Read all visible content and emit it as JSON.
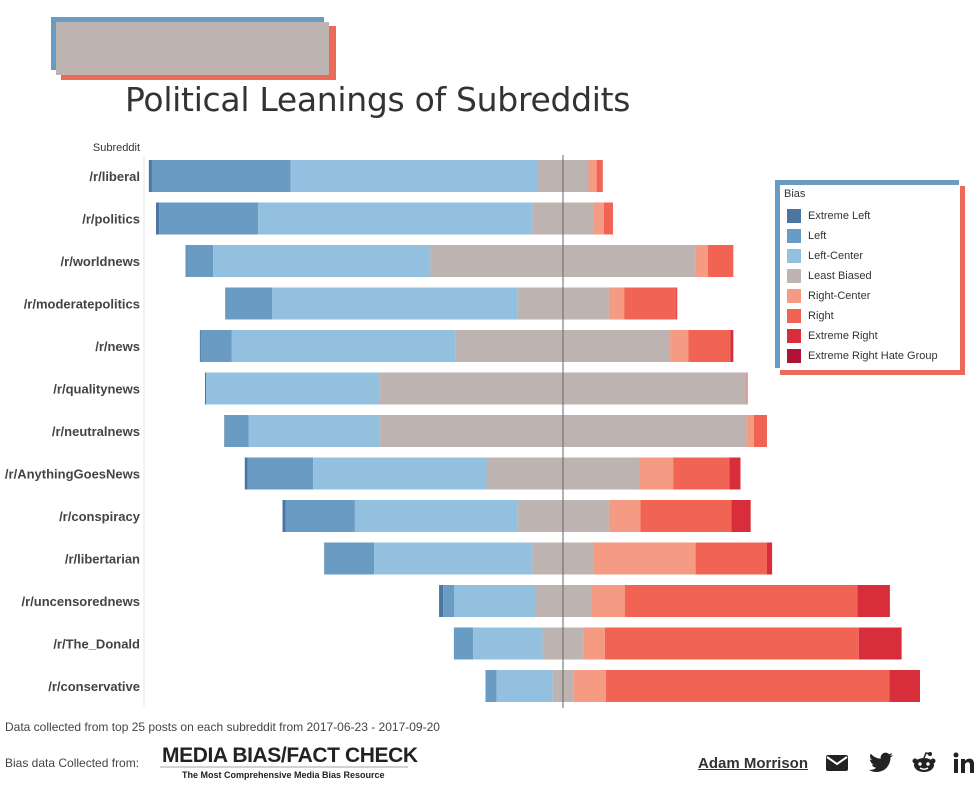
{
  "title": "Political Leanings of Subreddits",
  "footnotes": {
    "data_note": "Data collected from top 25 posts on each subreddit from 2017-06-23 - 2017-09-20",
    "bias_source_label": "Bias data Collected from:"
  },
  "source_logo": {
    "name": "MEDIA BIAS/FACT CHECK",
    "tagline": "The Most Comprehensive Media Bias Resource"
  },
  "author": "Adam Morrison",
  "social_icons": [
    "mail-icon",
    "twitter-icon",
    "reddit-icon",
    "linkedin-icon"
  ],
  "legend": {
    "title": "Bias",
    "items": [
      {
        "label": "Extreme Left",
        "color": "#4a76a0"
      },
      {
        "label": "Left",
        "color": "#6a9bc3"
      },
      {
        "label": "Left-Center",
        "color": "#93c0de"
      },
      {
        "label": "Least Biased",
        "color": "#bdb3b0"
      },
      {
        "label": "Right-Center",
        "color": "#f59a83"
      },
      {
        "label": "Right",
        "color": "#f16453"
      },
      {
        "label": "Extreme Right",
        "color": "#d82e3c"
      },
      {
        "label": "Extreme Right Hate Group",
        "color": "#b01434"
      }
    ]
  },
  "chart_data": {
    "type": "bar",
    "orientation": "horizontal",
    "stacked": true,
    "diverging": true,
    "row_header": "Subreddit",
    "categories": [
      "/r/liberal",
      "/r/politics",
      "/r/worldnews",
      "/r/moderatepolitics",
      "/r/news",
      "/r/qualitynews",
      "/r/neutralnews",
      "/r/AnythingGoesNews",
      "/r/conspiracy",
      "/r/libertarian",
      "/r/uncensorednews",
      "/r/The_Donald",
      "/r/conservative"
    ],
    "series": [
      {
        "name": "Extreme Left",
        "values": [
          0.3,
          0.3,
          0.1,
          0.1,
          0.1,
          0.1,
          0.1,
          0.3,
          0.3,
          0.1,
          0.4,
          0.0,
          0.0
        ]
      },
      {
        "name": "Left",
        "values": [
          13.6,
          9.7,
          2.6,
          4.5,
          3.0,
          0.0,
          2.3,
          6.4,
          6.8,
          4.8,
          1.1,
          1.9,
          1.1
        ]
      },
      {
        "name": "Left-Center",
        "values": [
          24.2,
          26.9,
          21.3,
          24.0,
          22.0,
          17.0,
          12.8,
          17.0,
          15.9,
          15.5,
          7.9,
          6.8,
          5.5
        ]
      },
      {
        "name": "Least Biased",
        "values": [
          5.0,
          6.0,
          26.0,
          9.0,
          21.0,
          36.0,
          36.0,
          15.0,
          9.0,
          6.0,
          5.5,
          4.0,
          2.0
        ]
      },
      {
        "name": "Right-Center",
        "values": [
          0.8,
          1.0,
          1.2,
          1.5,
          1.8,
          0.0,
          0.7,
          3.3,
          3.1,
          10.0,
          3.3,
          2.1,
          3.2
        ]
      },
      {
        "name": "Right",
        "values": [
          0.6,
          0.9,
          2.5,
          5.1,
          4.1,
          0.1,
          1.3,
          5.5,
          8.9,
          7.0,
          22.8,
          24.9,
          27.8
        ]
      },
      {
        "name": "Extreme Right",
        "values": [
          0.0,
          0.0,
          0.0,
          0.1,
          0.3,
          0.0,
          0.0,
          1.1,
          1.9,
          0.5,
          3.2,
          4.2,
          3.0
        ]
      },
      {
        "name": "Extreme Right Hate Group",
        "values": [
          0,
          0,
          0,
          0,
          0,
          0,
          0,
          0,
          0,
          0,
          0,
          0,
          0
        ]
      }
    ],
    "center": "middle of Least Biased",
    "grid": false,
    "legend_position": "top-right"
  }
}
